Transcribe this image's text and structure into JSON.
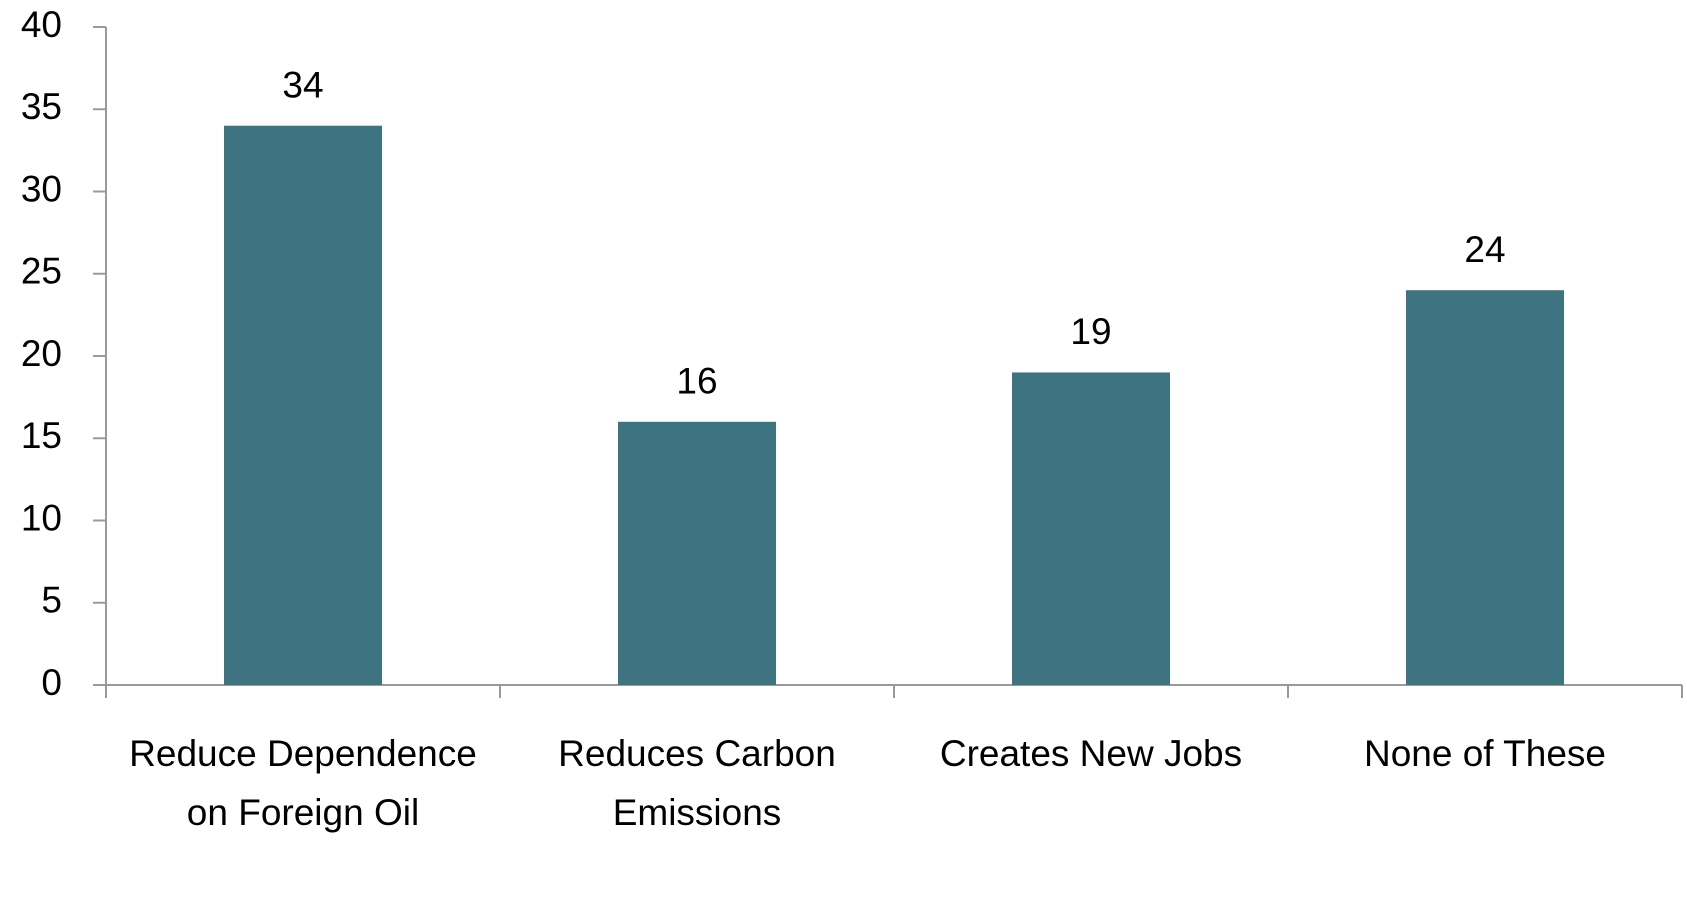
{
  "chart_data": {
    "type": "bar",
    "categories": [
      "Reduce Dependence on Foreign Oil",
      "Reduces Carbon Emissions",
      "Creates New Jobs",
      "None of These"
    ],
    "values": [
      34,
      16,
      19,
      24
    ],
    "color": "#3e7482",
    "ylim": [
      0,
      40
    ],
    "yticks": [
      0,
      5,
      10,
      15,
      20,
      25,
      30,
      35,
      40
    ],
    "grid": false
  }
}
